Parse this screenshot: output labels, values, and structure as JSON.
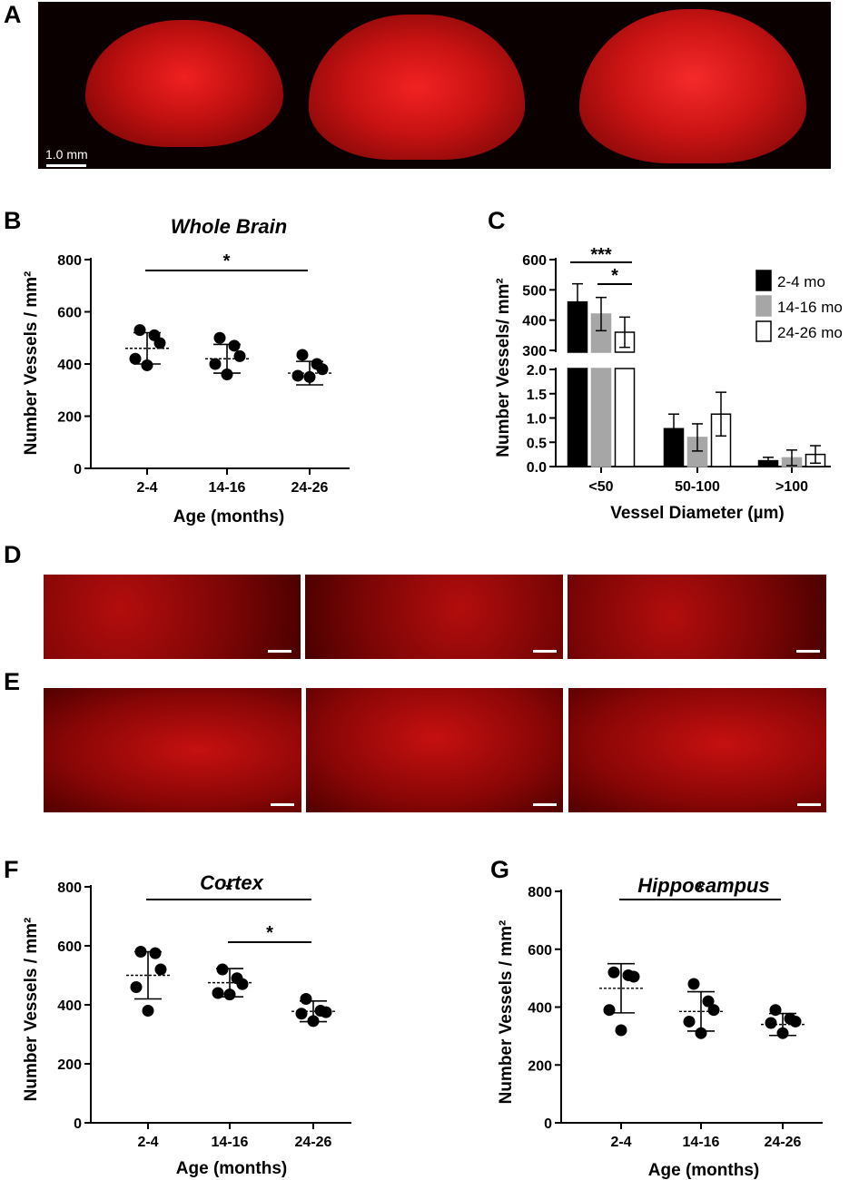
{
  "panel_letters": {
    "a": "A",
    "b": "B",
    "c": "C",
    "d": "D",
    "e": "E",
    "f": "F",
    "g": "G"
  },
  "scale_label": "1.0 mm",
  "colors": {
    "tissue": "#d81414",
    "background": "#0a0000",
    "gray_bar": "#a6a6a6"
  },
  "chart_data": [
    {
      "id": "B",
      "type": "scatter",
      "title": "Whole Brain",
      "xlabel": "Age (months)",
      "ylabel": "Number Vessels / mm²",
      "categories": [
        "2-4",
        "14-16",
        "24-26"
      ],
      "yticks": [
        "0",
        "200",
        "400",
        "600",
        "800"
      ],
      "ylim": [
        0,
        800
      ],
      "points": [
        [
          530,
          510,
          480,
          420,
          395
        ],
        [
          500,
          470,
          430,
          400,
          360
        ],
        [
          435,
          400,
          380,
          355,
          350
        ]
      ],
      "means": [
        460,
        420,
        365
      ],
      "sd": [
        60,
        55,
        45
      ],
      "significance": [
        {
          "from": 0,
          "to": 2,
          "label": "*"
        }
      ]
    },
    {
      "id": "C",
      "type": "bar",
      "title": "",
      "xlabel": "Vessel Diameter (µm)",
      "ylabel": "Number Vessels/ mm²",
      "categories": [
        "<50",
        "50-100",
        ">100"
      ],
      "yticks_upper": [
        "300",
        "400",
        "500",
        "600"
      ],
      "yticks_lower": [
        "0.0",
        "0.5",
        "1.0",
        "1.5",
        "2.0"
      ],
      "series": [
        {
          "name": "2-4 mo",
          "values": [
            460,
            0.78,
            0.12
          ],
          "errors": [
            60,
            0.3,
            0.07
          ]
        },
        {
          "name": "14-16 mo",
          "values": [
            420,
            0.6,
            0.18
          ],
          "errors": [
            55,
            0.28,
            0.16
          ]
        },
        {
          "name": "24-26 mo",
          "values": [
            360,
            1.08,
            0.25
          ],
          "errors": [
            50,
            0.45,
            0.18
          ]
        }
      ],
      "significance": [
        {
          "label": "***"
        },
        {
          "label": "*"
        }
      ]
    },
    {
      "id": "F",
      "type": "scatter",
      "title": "Cortex",
      "xlabel": "Age (months)",
      "ylabel": "Number Vessels / mm²",
      "categories": [
        "2-4",
        "14-16",
        "24-26"
      ],
      "yticks": [
        "0",
        "200",
        "400",
        "600",
        "800"
      ],
      "ylim": [
        0,
        800
      ],
      "points": [
        [
          580,
          575,
          520,
          460,
          380
        ],
        [
          520,
          490,
          470,
          440,
          435
        ],
        [
          420,
          380,
          375,
          370,
          345
        ]
      ],
      "means": [
        500,
        475,
        378
      ],
      "sd": [
        80,
        48,
        35
      ],
      "significance": [
        {
          "from": 0,
          "to": 2,
          "label": "*"
        },
        {
          "from": 1,
          "to": 2,
          "label": "*"
        }
      ]
    },
    {
      "id": "G",
      "type": "scatter",
      "title": "Hippocampus",
      "xlabel": "Age (months)",
      "ylabel": "Number Vessels / mm²",
      "categories": [
        "2-4",
        "14-16",
        "24-26"
      ],
      "yticks": [
        "0",
        "200",
        "400",
        "600",
        "800"
      ],
      "ylim": [
        0,
        800
      ],
      "points": [
        [
          520,
          510,
          505,
          390,
          320
        ],
        [
          480,
          420,
          390,
          350,
          310
        ],
        [
          390,
          360,
          350,
          345,
          310
        ]
      ],
      "means": [
        465,
        385,
        340
      ],
      "sd": [
        85,
        68,
        38
      ],
      "significance": [
        {
          "from": 0,
          "to": 2,
          "label": "*"
        }
      ]
    }
  ]
}
